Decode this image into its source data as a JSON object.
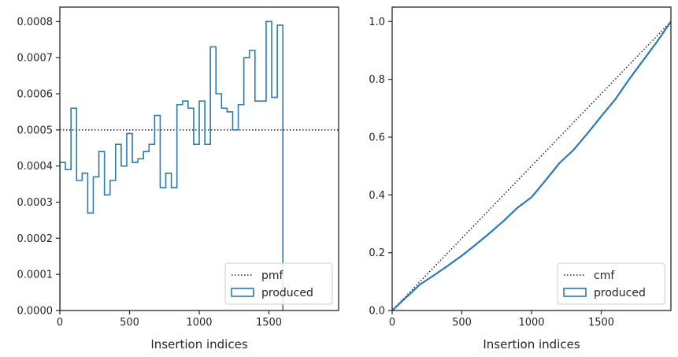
{
  "chart_data": [
    {
      "type": "histogram",
      "xlabel": "Insertion indices",
      "ylabel": "",
      "xlim": [
        0,
        2000
      ],
      "ylim": [
        0,
        0.00084
      ],
      "xticks": [
        0,
        500,
        1000,
        1500
      ],
      "xtick_labels": [
        "0",
        "500",
        "1000",
        "1500"
      ],
      "yticks": [
        0,
        0.0001,
        0.0002,
        0.0003,
        0.0004,
        0.0005,
        0.0006,
        0.0007,
        0.0008
      ],
      "ytick_labels": [
        "0.0000",
        "0.0001",
        "0.0002",
        "0.0003",
        "0.0004",
        "0.0005",
        "0.0006",
        "0.0007",
        "0.0008"
      ],
      "bin_width": 40,
      "series": [
        {
          "name": "pmf",
          "style": "dotted",
          "color": "#222222",
          "x": [
            0,
            2000
          ],
          "values": [
            0.0005,
            0.0005
          ]
        },
        {
          "name": "produced",
          "style": "step",
          "color": "#2a7ab5",
          "bin_edges_start": 0,
          "values": [
            0.00041,
            0.00039,
            0.00056,
            0.00036,
            0.00038,
            0.00027,
            0.00037,
            0.00044,
            0.00032,
            0.00036,
            0.00046,
            0.0004,
            0.00049,
            0.00041,
            0.00042,
            0.00044,
            0.00046,
            0.00054,
            0.00034,
            0.00038,
            0.00034,
            0.00057,
            0.00058,
            0.00056,
            0.00046,
            0.00058,
            0.00046,
            0.00073,
            0.0006,
            0.00056,
            0.00055,
            0.0005,
            0.00057,
            0.0007,
            0.00072,
            0.00058,
            0.00058,
            0.0008,
            0.00059,
            0.00079
          ]
        }
      ],
      "legend": {
        "position": "lower-right",
        "entries": [
          "pmf",
          "produced"
        ]
      }
    },
    {
      "type": "line",
      "xlabel": "Insertion indices",
      "ylabel": "",
      "xlim": [
        0,
        2000
      ],
      "ylim": [
        0,
        1.05
      ],
      "xticks": [
        0,
        500,
        1000,
        1500
      ],
      "xtick_labels": [
        "0",
        "500",
        "1000",
        "1500"
      ],
      "yticks": [
        0,
        0.2,
        0.4,
        0.6,
        0.8,
        1.0
      ],
      "ytick_labels": [
        "0.0",
        "0.2",
        "0.4",
        "0.6",
        "0.8",
        "1.0"
      ],
      "series": [
        {
          "name": "cmf",
          "style": "dotted",
          "color": "#222222",
          "x": [
            0,
            2000
          ],
          "values": [
            0,
            1
          ]
        },
        {
          "name": "produced",
          "style": "solid",
          "color": "#2a7ab5",
          "x": [
            0,
            100,
            200,
            300,
            400,
            500,
            600,
            700,
            800,
            900,
            1000,
            1100,
            1200,
            1300,
            1400,
            1500,
            1600,
            1700,
            1800,
            1900,
            2000
          ],
          "values": [
            0,
            0.045,
            0.09,
            0.122,
            0.155,
            0.19,
            0.228,
            0.268,
            0.31,
            0.356,
            0.392,
            0.45,
            0.51,
            0.555,
            0.612,
            0.672,
            0.73,
            0.8,
            0.865,
            0.93,
            1.0
          ]
        }
      ],
      "legend": {
        "position": "lower-right",
        "entries": [
          "cmf",
          "produced"
        ]
      }
    }
  ]
}
